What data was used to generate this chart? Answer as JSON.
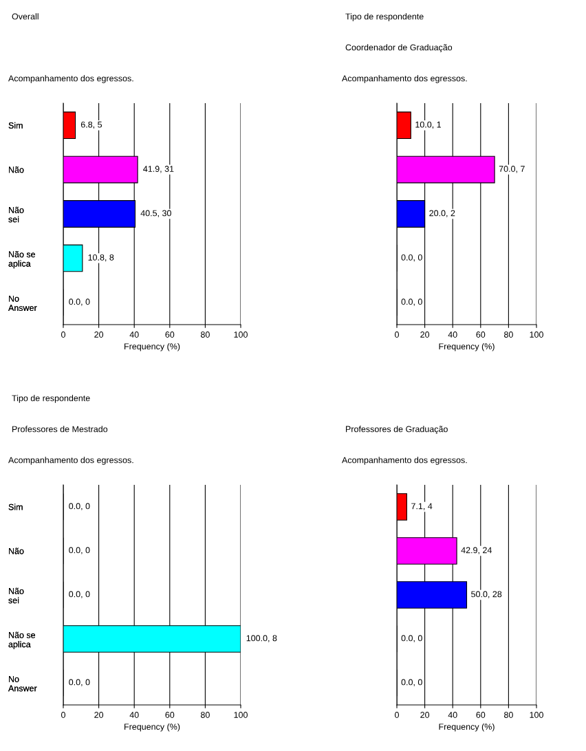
{
  "chart_data": [
    {
      "type": "bar",
      "orientation": "horizontal",
      "title": "Overall",
      "annotations": [
        "Acompanhamento dos egressos."
      ],
      "categories": [
        "Sim",
        "Não",
        "Não\nsei",
        "Não se\naplica",
        "No\nAnswer"
      ],
      "values": [
        6.8,
        41.9,
        40.5,
        10.8,
        0.0
      ],
      "value_labels": [
        "6.8, 5",
        "41.9, 31",
        "40.5, 30",
        "10.8, 8",
        "0.0, 0"
      ],
      "colors": [
        "#ff0000",
        "#ff00ff",
        "#0000ff",
        "#00ffff",
        "#ffffff"
      ],
      "xlim": [
        0,
        100
      ],
      "xticks": [
        0,
        20,
        40,
        60,
        80,
        100
      ],
      "xlabel": "Frequency (%)",
      "grid": "x"
    },
    {
      "type": "bar",
      "orientation": "horizontal",
      "title": "Tipo de respondente",
      "subtitle": "Professores de Mestrado",
      "annotations": [
        "Acompanhamento dos egressos."
      ],
      "categories": [
        "Sim",
        "Não",
        "Não\nsei",
        "Não se\naplica",
        "No\nAnswer"
      ],
      "values": [
        0.0,
        0.0,
        0.0,
        100.0,
        0.0
      ],
      "value_labels": [
        "0.0, 0",
        "0.0, 0",
        "0.0, 0",
        "100.0, 8",
        "0.0, 0"
      ],
      "colors": [
        "#ff0000",
        "#ff00ff",
        "#0000ff",
        "#00ffff",
        "#ffffff"
      ],
      "xlim": [
        0,
        100
      ],
      "xticks": [
        0,
        20,
        40,
        60,
        80,
        100
      ],
      "xlabel": "Frequency (%)",
      "grid": "x"
    },
    {
      "type": "bar",
      "orientation": "horizontal",
      "subtitle": "Professores de Graduação",
      "annotations": [
        "Acompanhamento dos egressos."
      ],
      "categories": [
        "Sim",
        "Não",
        "Não\nsei",
        "Não se\naplica",
        "No\nAnswer"
      ],
      "values": [
        7.1,
        42.9,
        50.0,
        0.0,
        0.0
      ],
      "value_labels": [
        "7.1, 4",
        "42.9, 24",
        "50.0, 28",
        "0.0, 0",
        "0.0, 0"
      ],
      "colors": [
        "#ff0000",
        "#ff00ff",
        "#0000ff",
        "#00ffff",
        "#ffffff"
      ],
      "xlim": [
        0,
        100
      ],
      "xticks": [
        0,
        20,
        40,
        60,
        80,
        100
      ],
      "xlabel": "Frequency (%)",
      "grid": "x"
    },
    {
      "type": "bar",
      "orientation": "horizontal",
      "title": "Tipo de respondente",
      "subtitle": "Coordenador de Graduação",
      "annotations": [
        "Acompanhamento dos egressos."
      ],
      "categories": [
        "Sim",
        "Não",
        "Não\nsei",
        "Não se\naplica",
        "No\nAnswer"
      ],
      "values": [
        10.0,
        70.0,
        20.0,
        0.0,
        0.0
      ],
      "value_labels": [
        "10.0, 1",
        "70.0, 7",
        "20.0, 2",
        "0.0, 0",
        "0.0, 0"
      ],
      "colors": [
        "#ff0000",
        "#ff00ff",
        "#0000ff",
        "#00ffff",
        "#ffffff"
      ],
      "xlim": [
        0,
        100
      ],
      "xticks": [
        0,
        20,
        40,
        60,
        80,
        100
      ],
      "xlabel": "Frequency (%)",
      "grid": "x"
    }
  ]
}
